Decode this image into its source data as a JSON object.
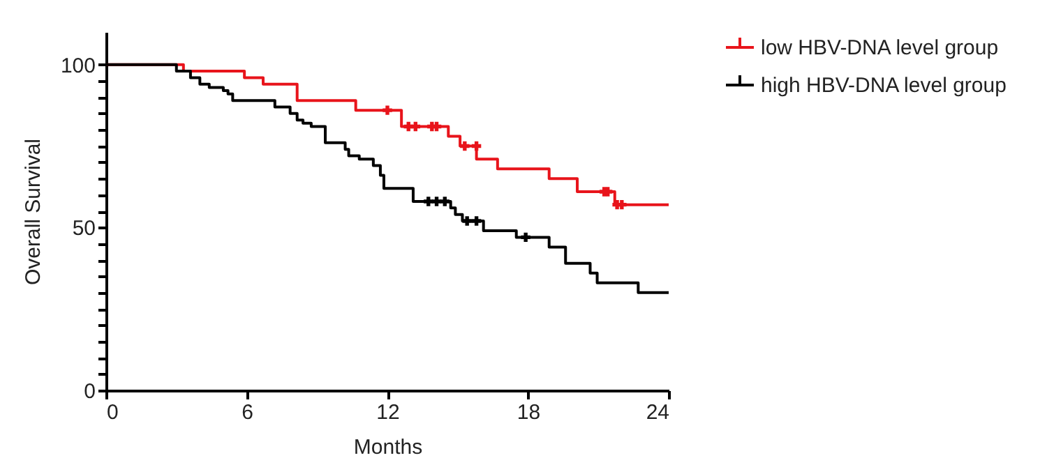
{
  "chart_data": {
    "type": "step",
    "xlabel": "Months",
    "ylabel": "Overall Survival",
    "xlim": [
      0,
      24
    ],
    "xticks": [
      0,
      6,
      12,
      18,
      24
    ],
    "ylim": [
      0,
      110
    ],
    "yticks": [
      0,
      {
        "value": 5,
        "label": null
      },
      {
        "value": 10,
        "label": null
      },
      {
        "value": 15,
        "label": null
      },
      {
        "value": 20,
        "label": null
      },
      {
        "value": 25,
        "label": null
      },
      {
        "value": 30,
        "label": null
      },
      {
        "value": 35,
        "label": null
      },
      {
        "value": 40,
        "label": null
      },
      {
        "value": 45,
        "label": null
      },
      50,
      {
        "value": 55,
        "label": null
      },
      {
        "value": 60,
        "label": null
      },
      {
        "value": 65,
        "label": null
      },
      {
        "value": 70,
        "label": null
      },
      {
        "value": 75,
        "label": null
      },
      {
        "value": 80,
        "label": null
      },
      {
        "value": 85,
        "label": null
      },
      {
        "value": 90,
        "label": null
      },
      {
        "value": 95,
        "label": null
      },
      100
    ],
    "grid": false,
    "legend": "top right",
    "series": [
      {
        "name": "low HBV-DNA level group",
        "color": "#e8141b",
        "x": [
          0,
          3.3,
          5.9,
          6.7,
          8.15,
          10.65,
          12.6,
          14.6,
          15.1,
          15.8,
          16.7,
          18.9,
          20.1,
          21.7,
          24
        ],
        "values": [
          100,
          98,
          96,
          94,
          89,
          86,
          81,
          78,
          75,
          71,
          68,
          65,
          61,
          57,
          57
        ]
      },
      {
        "name": "high HBV-DNA level group",
        "color": "#000000",
        "x": [
          0,
          3.0,
          3.6,
          4.0,
          4.4,
          5.0,
          5.2,
          5.4,
          7.2,
          7.85,
          8.15,
          8.4,
          8.75,
          9.35,
          10.2,
          10.35,
          10.8,
          11.4,
          11.7,
          11.85,
          13.1,
          14.7,
          14.9,
          15.2,
          16.1,
          17.5,
          18.9,
          19.6,
          20.65,
          20.95,
          22.7,
          24
        ],
        "values": [
          100,
          98,
          96,
          94,
          93,
          92,
          91,
          89,
          87,
          85,
          83,
          82,
          81,
          76,
          74,
          72,
          71,
          69,
          66,
          62,
          58,
          56,
          54,
          52,
          49,
          47,
          44,
          39,
          36,
          33,
          30,
          30
        ]
      },
      {
        "type": "scatter",
        "marker": "cross",
        "color": "#e8141b",
        "x": [
          12.0,
          12.9,
          13.2,
          13.9,
          14.1,
          15.3,
          15.8,
          21.25,
          21.4,
          21.8,
          22.0
        ],
        "values": [
          86,
          81,
          81,
          81,
          81,
          75,
          75,
          61,
          61,
          57,
          57
        ]
      },
      {
        "type": "scatter",
        "marker": "cross",
        "color": "#000000",
        "x": [
          13.75,
          14.1,
          14.45,
          15.4,
          15.8,
          17.9
        ],
        "values": [
          58,
          58,
          58,
          52,
          52,
          47
        ]
      }
    ]
  }
}
